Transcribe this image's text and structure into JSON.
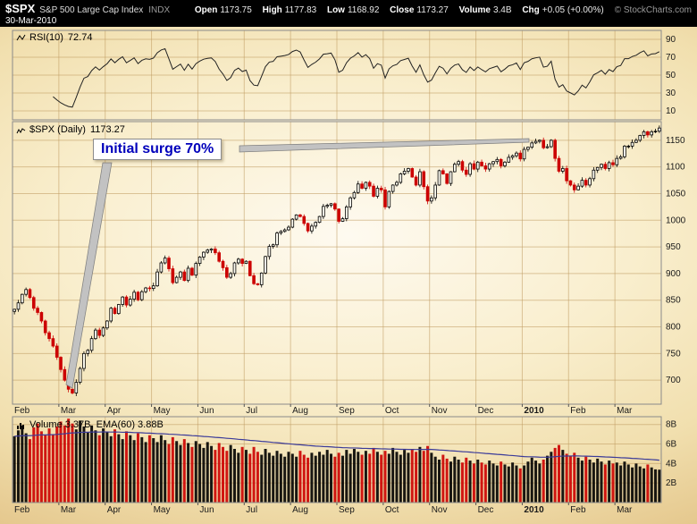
{
  "header": {
    "symbol": "$SPX",
    "name": "S&P 500 Large Cap Index",
    "exchange": "INDX",
    "date": "30-Mar-2010",
    "quote": {
      "open_label": "Open",
      "open": "1173.75",
      "high_label": "High",
      "high": "1177.83",
      "low_label": "Low",
      "low": "1168.92",
      "close_label": "Close",
      "close": "1173.27",
      "volume_label": "Volume",
      "volume": "3.4B",
      "chg_label": "Chg",
      "chg": "+0.05 (+0.00%)"
    },
    "copyright": "© StockCharts.com"
  },
  "panels": {
    "rsi_label": "RSI(10)",
    "rsi_value": "72.74",
    "price_label": "$SPX (Daily)",
    "price_value": "1173.27",
    "volume_label": "Volume 3.37B, EMA(60) 3.88B"
  },
  "annotation": {
    "text": "Initial surge 70%"
  },
  "colors": {
    "up": "#000000",
    "up_fill": "#fffdf2",
    "down": "#cc0000",
    "rsi_line": "#222222",
    "ema_line": "#3a3a99",
    "grid": "#bf9b60",
    "border": "#8a8a8a",
    "annotation_text": "#0000bb"
  },
  "chart_data": {
    "type": "candlestick",
    "title": "$SPX (Daily)",
    "symbol": "$SPX",
    "timeframe": "Daily",
    "last_close": 1173.27,
    "months": [
      {
        "label": "Feb",
        "bold": false
      },
      {
        "label": "Mar",
        "bold": false
      },
      {
        "label": "Apr",
        "bold": false
      },
      {
        "label": "May",
        "bold": false
      },
      {
        "label": "Jun",
        "bold": false
      },
      {
        "label": "Jul",
        "bold": false
      },
      {
        "label": "Aug",
        "bold": false
      },
      {
        "label": "Sep",
        "bold": false
      },
      {
        "label": "Oct",
        "bold": false
      },
      {
        "label": "Nov",
        "bold": false
      },
      {
        "label": "Dec",
        "bold": false
      },
      {
        "label": "2010",
        "bold": true
      },
      {
        "label": "Feb",
        "bold": false
      },
      {
        "label": "Mar",
        "bold": false
      }
    ],
    "points_per_month": 12,
    "close": [
      833,
      845,
      861,
      870,
      855,
      835,
      827,
      811,
      789,
      778,
      764,
      743,
      720,
      700,
      683,
      676,
      696,
      722,
      750,
      756,
      778,
      794,
      784,
      798,
      811,
      835,
      825,
      842,
      856,
      841,
      852,
      865,
      851,
      866,
      873,
      872,
      877,
      903,
      920,
      929,
      909,
      883,
      893,
      903,
      887,
      910,
      897,
      919,
      931,
      940,
      944,
      946,
      939,
      923,
      911,
      893,
      900,
      920,
      927,
      919,
      923,
      896,
      881,
      879,
      901,
      932,
      951,
      954,
      976,
      979,
      982,
      987,
      1002,
      1010,
      1007,
      994,
      980,
      989,
      996,
      1007,
      1026,
      1028,
      1031,
      1021,
      998,
      1003,
      1025,
      1042,
      1052,
      1068,
      1060,
      1071,
      1064,
      1045,
      1060,
      1057,
      1025,
      1054,
      1066,
      1071,
      1087,
      1092,
      1097,
      1081,
      1066,
      1091,
      1063,
      1036,
      1042,
      1066,
      1093,
      1087,
      1069,
      1091,
      1105,
      1110,
      1094,
      1086,
      1106,
      1096,
      1109,
      1102,
      1096,
      1106,
      1110,
      1114,
      1102,
      1109,
      1118,
      1121,
      1126,
      1115,
      1133,
      1137,
      1145,
      1148,
      1150,
      1136,
      1138,
      1150,
      1116,
      1092,
      1097,
      1074,
      1066,
      1057,
      1064,
      1075,
      1066,
      1078,
      1094,
      1099,
      1105,
      1097,
      1108,
      1104,
      1116,
      1119,
      1139,
      1139,
      1146,
      1150,
      1159,
      1166,
      1160,
      1166,
      1167,
      1173
    ],
    "volume_billions": [
      6.8,
      7.4,
      7.9,
      7.1,
      6.5,
      7.7,
      8.1,
      7.3,
      6.9,
      7.6,
      7.0,
      7.8,
      8.3,
      7.9,
      8.6,
      8.1,
      7.5,
      8.4,
      7.8,
      7.2,
      7.9,
      7.4,
      6.9,
      7.6,
      7.2,
      6.8,
      7.5,
      7.0,
      6.5,
      7.3,
      6.9,
      6.4,
      7.1,
      6.7,
      6.2,
      6.9,
      6.6,
      6.2,
      6.9,
      6.4,
      6.0,
      6.7,
      6.3,
      5.9,
      6.5,
      6.1,
      5.7,
      6.3,
      6.0,
      5.6,
      6.2,
      5.8,
      5.4,
      6.1,
      5.7,
      5.3,
      5.9,
      5.5,
      5.1,
      5.7,
      5.4,
      5.0,
      5.7,
      5.2,
      4.9,
      5.5,
      5.1,
      4.8,
      5.3,
      5.0,
      4.7,
      5.2,
      5.0,
      4.7,
      5.3,
      4.9,
      4.6,
      5.1,
      4.8,
      5.2,
      4.9,
      5.4,
      5.0,
      4.7,
      5.1,
      4.8,
      5.4,
      5.0,
      5.5,
      5.2,
      4.9,
      5.3,
      5.0,
      5.6,
      5.2,
      4.9,
      5.3,
      5.0,
      5.6,
      5.2,
      4.9,
      5.4,
      5.1,
      5.5,
      5.2,
      5.7,
      5.3,
      5.8,
      5.1,
      4.7,
      4.4,
      4.9,
      4.5,
      4.2,
      4.7,
      4.4,
      4.1,
      4.6,
      4.3,
      4.0,
      4.4,
      4.1,
      3.9,
      4.3,
      4.0,
      3.8,
      4.2,
      3.9,
      3.7,
      4.1,
      3.8,
      3.5,
      3.8,
      4.2,
      4.6,
      4.3,
      4.0,
      4.4,
      4.8,
      5.2,
      5.6,
      5.9,
      5.4,
      5.0,
      4.8,
      5.1,
      4.6,
      4.3,
      4.7,
      4.4,
      4.1,
      4.5,
      4.2,
      3.9,
      4.3,
      4.0,
      4.1,
      3.8,
      4.2,
      3.9,
      3.6,
      4.0,
      3.7,
      3.5,
      3.9,
      3.6,
      3.4,
      3.37
    ],
    "price_axis": {
      "min": 655,
      "max": 1185,
      "ticks": [
        1150,
        1100,
        1050,
        1000,
        950,
        900,
        850,
        800,
        750,
        700
      ]
    },
    "rsi": {
      "period": 10,
      "last": 72.74,
      "ticks": [
        90,
        70,
        50,
        30,
        10
      ]
    },
    "volume_axis": {
      "min": 0,
      "max": 8.8,
      "ticks": [
        {
          "value": 8,
          "label": "8B"
        },
        {
          "value": 6,
          "label": "6B"
        },
        {
          "value": 4,
          "label": "4B"
        },
        {
          "value": 2,
          "label": "2B"
        }
      ]
    },
    "ema_period": 60
  }
}
